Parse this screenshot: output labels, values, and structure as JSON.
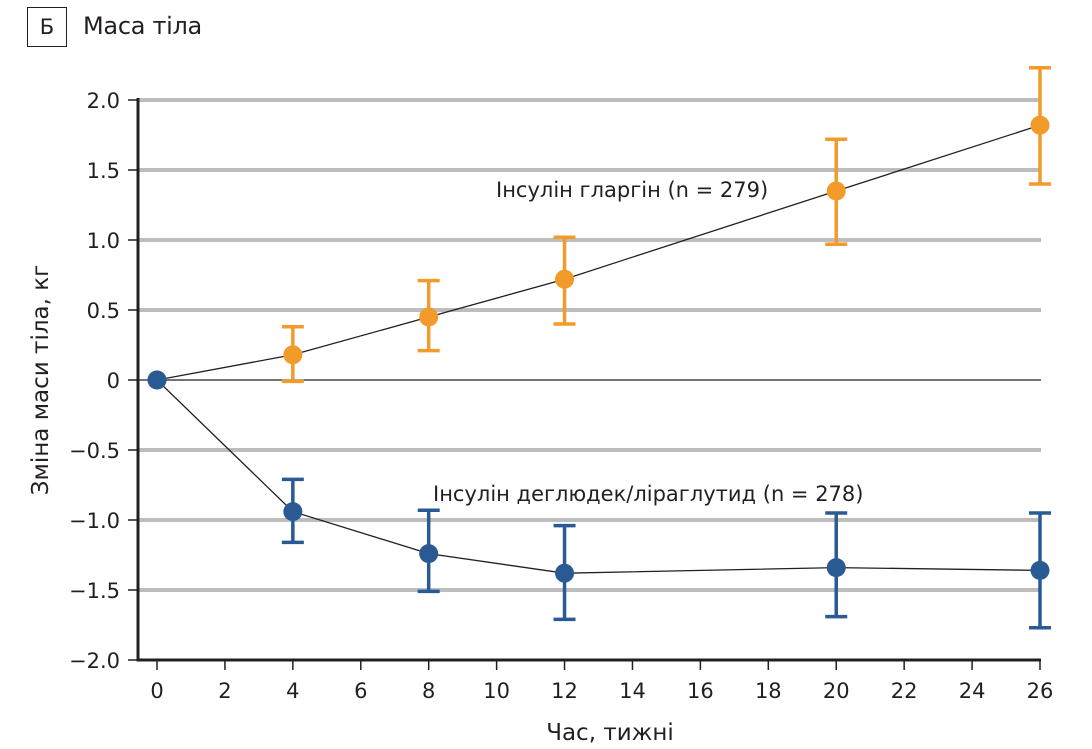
{
  "panel": {
    "letter": "Б",
    "title": "Маса тіла"
  },
  "colors": {
    "glargine": "#F39B2A",
    "degludec_liraglutide": "#2A5A94",
    "grid": "#BDBDBD",
    "axis": "#231F20"
  },
  "chart_data": {
    "type": "line",
    "title": "Маса тіла",
    "xlabel": "Час, тижні",
    "ylabel": "Зміна маси тіла, кг",
    "xlim": [
      0,
      26
    ],
    "ylim": [
      -2.0,
      2.0
    ],
    "x_ticks": [
      0,
      2,
      4,
      6,
      8,
      10,
      12,
      14,
      16,
      18,
      20,
      22,
      24,
      26
    ],
    "x_tick_labels": [
      "0",
      "2",
      "4",
      "6",
      "8",
      "10",
      "12",
      "14",
      "16",
      "18",
      "20",
      "22",
      "24",
      "26"
    ],
    "y_ticks": [
      2.0,
      1.5,
      1.0,
      0.5,
      0,
      -0.5,
      -1.0,
      -1.5,
      -2.0
    ],
    "y_tick_labels": [
      "2.0",
      "1.5",
      "1.0",
      "0.5",
      "0",
      "−0.5",
      "−1.0",
      "−1.5",
      "−2.0"
    ],
    "grid": true,
    "series": [
      {
        "name": "Інсулін гларгін (n = 279)",
        "key": "glargine",
        "x": [
          0,
          4,
          8,
          12,
          20,
          26
        ],
        "y": [
          0,
          0.18,
          0.45,
          0.72,
          1.35,
          1.82
        ],
        "err_upper": [
          null,
          0.38,
          0.71,
          1.02,
          1.72,
          2.23
        ],
        "err_lower": [
          null,
          -0.01,
          0.21,
          0.4,
          0.97,
          1.4
        ]
      },
      {
        "name": "Інсулін деглюдек/ліраглутид (n = 278)",
        "key": "degludec_liraglutide",
        "x": [
          0,
          4,
          8,
          12,
          20,
          26
        ],
        "y": [
          0,
          -0.94,
          -1.24,
          -1.38,
          -1.34,
          -1.36
        ],
        "err_upper": [
          null,
          -0.71,
          -0.93,
          -1.04,
          -0.95,
          -0.95
        ],
        "err_lower": [
          null,
          -1.16,
          -1.51,
          -1.71,
          -1.69,
          -1.77
        ]
      }
    ]
  }
}
